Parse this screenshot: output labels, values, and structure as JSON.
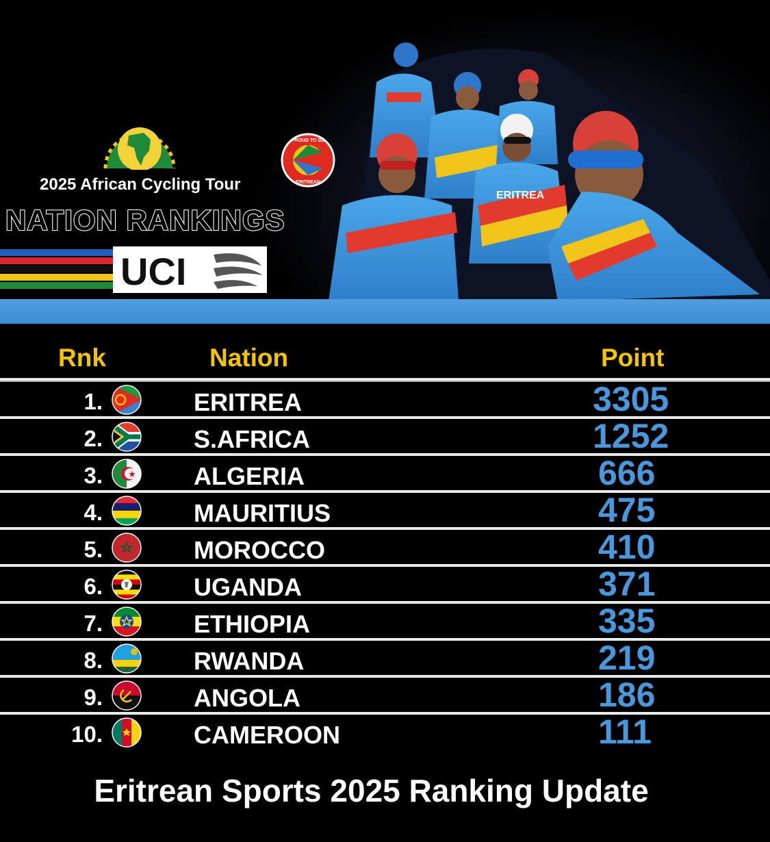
{
  "header": {
    "tour_title": "2025 African Cycling Tour",
    "ranking_title": "NATION RANKINGS",
    "uci_logo_text": "UCI",
    "badge_text_top": "PROUD TO BE",
    "badge_text_bottom": "ERITREAN",
    "jersey_text": "ERITREA"
  },
  "table": {
    "columns": {
      "rank": "Rnk",
      "nation": "Nation",
      "points": "Point"
    },
    "rows": [
      {
        "rank": "1.",
        "nation": "ERITREA",
        "points": "3305",
        "flag": "eritrea-flag-icon"
      },
      {
        "rank": "2.",
        "nation": "S.AFRICA",
        "points": "1252",
        "flag": "south-africa-flag-icon"
      },
      {
        "rank": "3.",
        "nation": "ALGERIA",
        "points": "666",
        "flag": "algeria-flag-icon"
      },
      {
        "rank": "4.",
        "nation": "MAURITIUS",
        "points": "475",
        "flag": "mauritius-flag-icon"
      },
      {
        "rank": "5.",
        "nation": "MOROCCO",
        "points": "410",
        "flag": "morocco-flag-icon"
      },
      {
        "rank": "6.",
        "nation": "UGANDA",
        "points": "371",
        "flag": "uganda-flag-icon"
      },
      {
        "rank": "7.",
        "nation": "ETHIOPIA",
        "points": "335",
        "flag": "ethiopia-flag-icon"
      },
      {
        "rank": "8.",
        "nation": "RWANDA",
        "points": "219",
        "flag": "rwanda-flag-icon"
      },
      {
        "rank": "9.",
        "nation": "ANGOLA",
        "points": "186",
        "flag": "angola-flag-icon"
      },
      {
        "rank": "10.",
        "nation": "CAMEROON",
        "points": "111",
        "flag": "cameroon-flag-icon"
      }
    ]
  },
  "footer": {
    "caption": "Eritrean Sports 2025 Ranking Update"
  },
  "colors": {
    "header_yellow": "#f5c400",
    "points_blue": "#4a98dc",
    "band_blue": "#3b8ad2",
    "background": "#000000"
  }
}
